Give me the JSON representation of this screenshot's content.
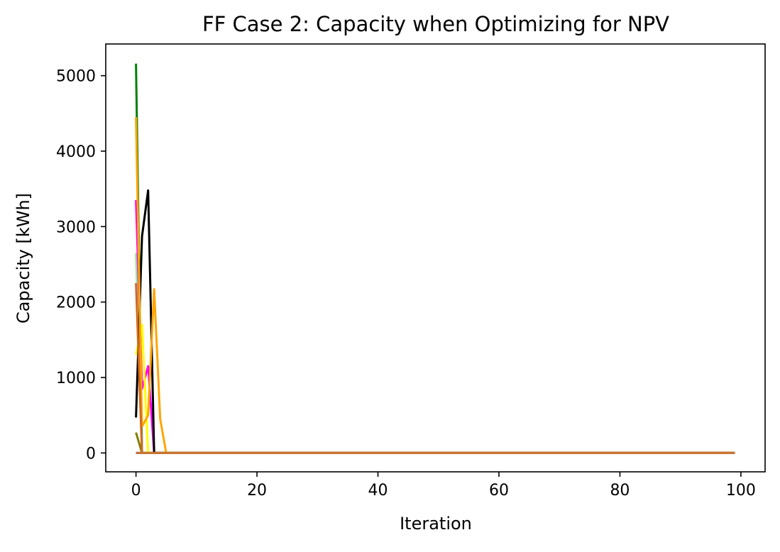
{
  "chart_data": {
    "type": "line",
    "title": "FF Case 2: Capacity when Optimizing for NPV",
    "xlabel": "Iteration",
    "ylabel": "Capacity [kWh]",
    "xlim": [
      -5,
      104
    ],
    "ylim": [
      -250,
      5420
    ],
    "xticks": [
      0,
      20,
      40,
      60,
      80,
      100
    ],
    "xtick_labels": [
      "0",
      "20",
      "40",
      "60",
      "80",
      "100"
    ],
    "yticks": [
      0,
      1000,
      2000,
      3000,
      4000,
      5000
    ],
    "ytick_labels": [
      "0",
      "1000",
      "2000",
      "3000",
      "4000",
      "5000"
    ],
    "grid": false,
    "legend": "none",
    "series": [
      {
        "color": "#0000cc",
        "x": [
          0,
          1,
          99
        ],
        "y": [
          0,
          0,
          0
        ]
      },
      {
        "color": "#008000",
        "x": [
          0,
          1,
          99
        ],
        "y": [
          5160,
          0,
          0
        ]
      },
      {
        "color": "#90ee90",
        "x": [
          0,
          1,
          99
        ],
        "y": [
          2650,
          0,
          0
        ]
      },
      {
        "color": "#808000",
        "x": [
          0,
          1,
          99
        ],
        "y": [
          270,
          0,
          0
        ]
      },
      {
        "color": "#ff00ff",
        "x": [
          0,
          1,
          2,
          3,
          4,
          99
        ],
        "y": [
          3350,
          850,
          1150,
          0,
          0,
          0
        ]
      },
      {
        "color": "#ffff00",
        "x": [
          0,
          1,
          2,
          3,
          99
        ],
        "y": [
          1300,
          1700,
          0,
          0,
          0
        ]
      },
      {
        "color": "#000000",
        "x": [
          0,
          1,
          2,
          3,
          99
        ],
        "y": [
          470,
          2870,
          3480,
          0,
          0
        ]
      },
      {
        "color": "#ffa500",
        "x": [
          0,
          1,
          2,
          3,
          4,
          5,
          99
        ],
        "y": [
          4450,
          350,
          500,
          2170,
          450,
          0,
          0
        ]
      },
      {
        "color": "#d2691e",
        "x": [
          0,
          1,
          2,
          99
        ],
        "y": [
          2250,
          0,
          0,
          0
        ]
      },
      {
        "color": "#c87533",
        "x": [
          0,
          99
        ],
        "y": [
          0,
          0
        ]
      }
    ]
  }
}
